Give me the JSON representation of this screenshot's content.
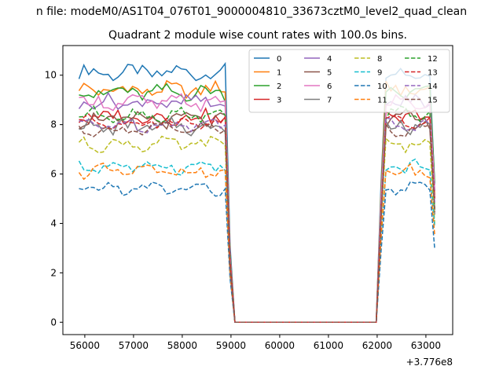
{
  "chart_data": {
    "type": "line",
    "suptitle": "n file: modeM0/AS1T04_076T01_9000004810_33673cztM0_level2_quad_clean",
    "title": "Quadrant 2 module wise count rates with 100.0s bins.",
    "xlabel": "",
    "ylabel": "",
    "x_offset_label": "+3.776e8",
    "x_range_display": [
      55550,
      63550
    ],
    "ylim": [
      -0.5,
      11.2
    ],
    "xticks": [
      "56000",
      "57000",
      "58000",
      "59000",
      "60000",
      "61000",
      "62000",
      "63000"
    ],
    "yticks": [
      "0",
      "2",
      "4",
      "6",
      "8",
      "10"
    ],
    "x_start": 55880,
    "x_step": 100,
    "n_points": 74,
    "on_segment_1": [
      0,
      30
    ],
    "gap_segment": [
      32,
      61
    ],
    "on_segment_2": [
      63,
      73
    ],
    "legend": {
      "location": "top-right",
      "columns": 4
    },
    "series": [
      {
        "name": "0",
        "color": "#1f77b4",
        "style": "solid",
        "level": 10.1,
        "amplitude": 0.25
      },
      {
        "name": "1",
        "color": "#ff7f0e",
        "style": "solid",
        "level": 9.4,
        "amplitude": 0.25
      },
      {
        "name": "2",
        "color": "#2ca02c",
        "style": "solid",
        "level": 9.3,
        "amplitude": 0.25
      },
      {
        "name": "3",
        "color": "#d62728",
        "style": "solid",
        "level": 8.3,
        "amplitude": 0.25
      },
      {
        "name": "4",
        "color": "#9467bd",
        "style": "solid",
        "level": 8.9,
        "amplitude": 0.25
      },
      {
        "name": "5",
        "color": "#8c564b",
        "style": "solid",
        "level": 8.2,
        "amplitude": 0.25
      },
      {
        "name": "6",
        "color": "#e377c2",
        "style": "solid",
        "level": 8.9,
        "amplitude": 0.25
      },
      {
        "name": "7",
        "color": "#7f7f7f",
        "style": "solid",
        "level": 7.9,
        "amplitude": 0.25
      },
      {
        "name": "8",
        "color": "#bcbd22",
        "style": "dashed",
        "level": 7.2,
        "amplitude": 0.2
      },
      {
        "name": "9",
        "color": "#17becf",
        "style": "dashed",
        "level": 6.3,
        "amplitude": 0.2
      },
      {
        "name": "10",
        "color": "#1f77b4",
        "style": "dashed",
        "level": 5.4,
        "amplitude": 0.2
      },
      {
        "name": "11",
        "color": "#ff7f0e",
        "style": "dashed",
        "level": 6.1,
        "amplitude": 0.2
      },
      {
        "name": "12",
        "color": "#2ca02c",
        "style": "dashed",
        "level": 8.4,
        "amplitude": 0.2
      },
      {
        "name": "13",
        "color": "#d62728",
        "style": "dashed",
        "level": 8.1,
        "amplitude": 0.2
      },
      {
        "name": "14",
        "color": "#9467bd",
        "style": "dashed",
        "level": 8.0,
        "amplitude": 0.2
      },
      {
        "name": "15",
        "color": "#8c564b",
        "style": "dashed",
        "level": 7.8,
        "amplitude": 0.2
      }
    ]
  }
}
